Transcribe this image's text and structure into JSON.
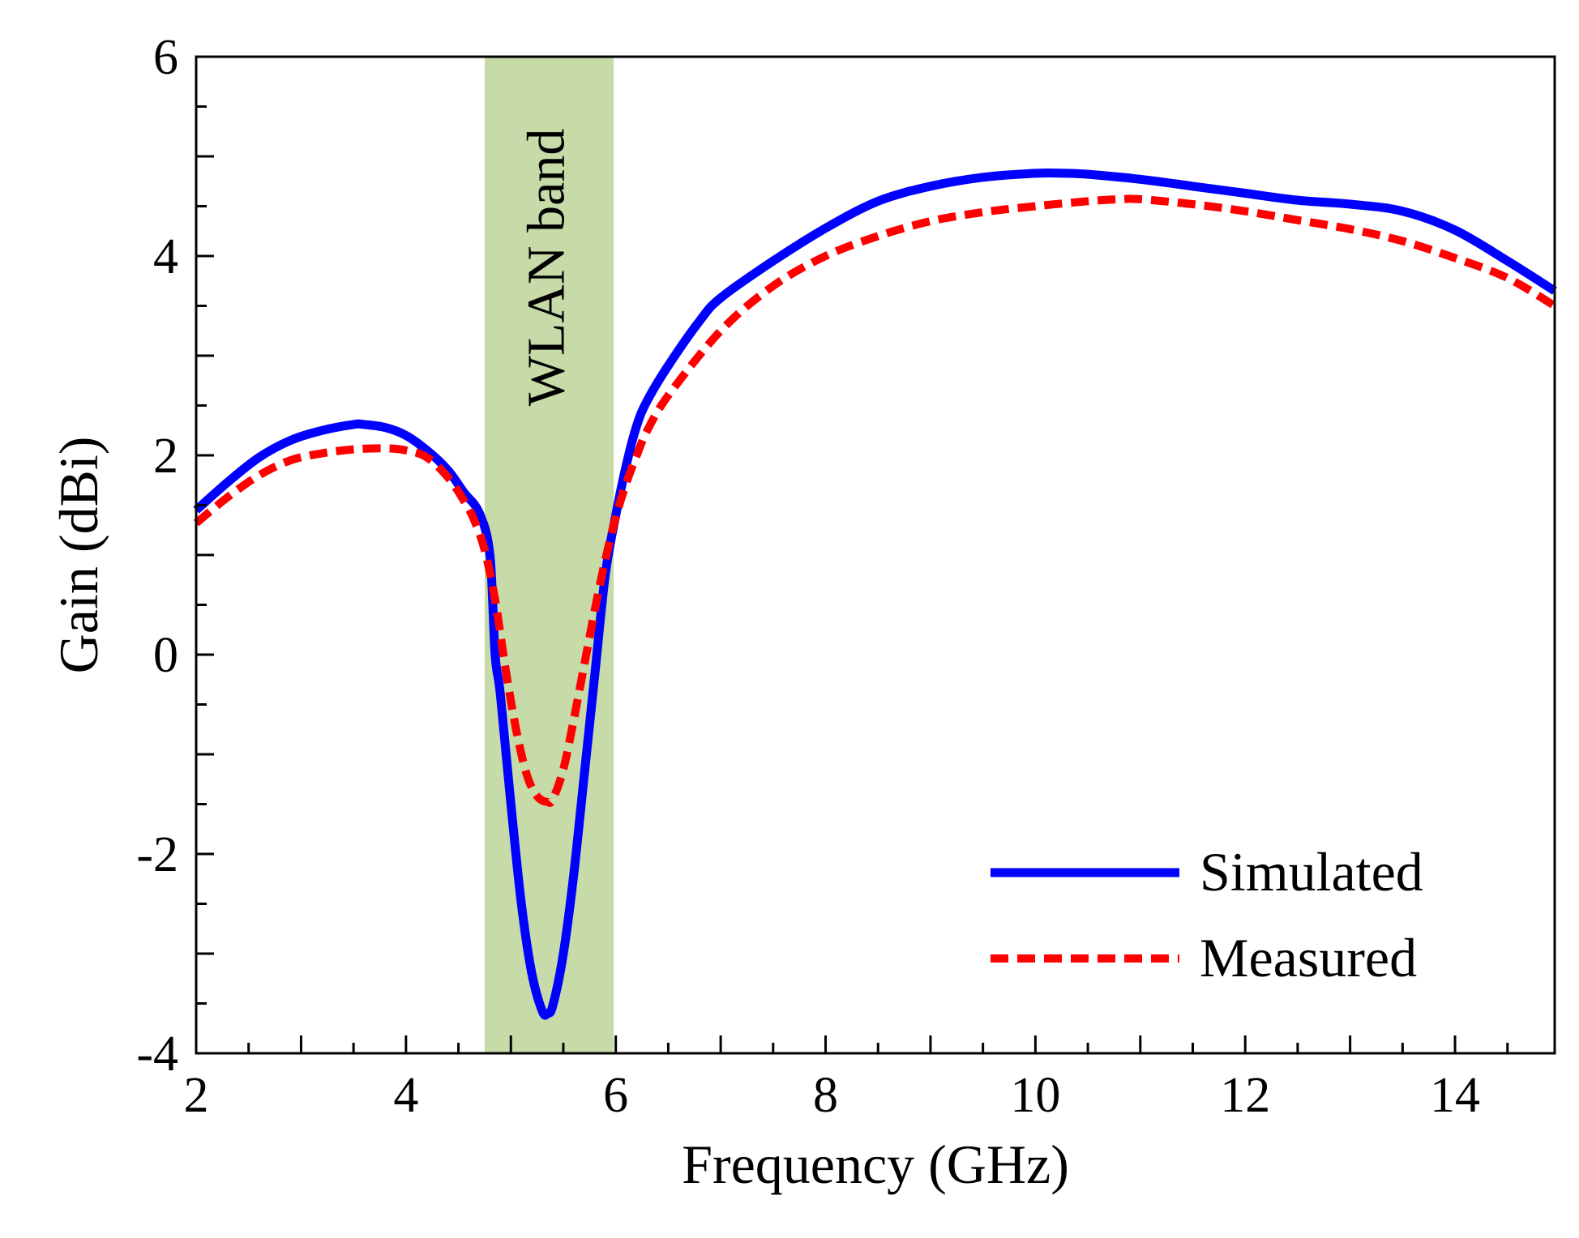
{
  "chart_data": {
    "type": "line",
    "xlabel": "Frequency (GHz)",
    "ylabel": "Gain (dBi)",
    "xlim": [
      2,
      14.95
    ],
    "ylim": [
      -4,
      6
    ],
    "xticks": [
      2,
      4,
      6,
      8,
      10,
      12,
      14
    ],
    "yticks": [
      -4,
      -2,
      0,
      2,
      4,
      6
    ],
    "grid": false,
    "legend_position": "bottom-right",
    "band": {
      "label": "WLAN band",
      "x_start": 4.75,
      "x_end": 5.98,
      "color": "#c6dba8"
    },
    "series": [
      {
        "name": "Simulated",
        "color": "#0000ff",
        "style": "solid",
        "x": [
          2.0,
          2.3,
          2.6,
          2.9,
          3.2,
          3.5,
          3.6,
          3.8,
          4.0,
          4.2,
          4.4,
          4.55,
          4.7,
          4.8,
          4.85,
          4.9,
          5.0,
          5.1,
          5.2,
          5.3,
          5.35,
          5.4,
          5.5,
          5.6,
          5.7,
          5.8,
          5.9,
          6.0,
          6.1,
          6.2,
          6.3,
          6.5,
          6.8,
          7.0,
          7.5,
          8.0,
          8.5,
          9.0,
          9.5,
          10.0,
          10.3,
          10.5,
          11.0,
          11.5,
          12.0,
          12.5,
          13.0,
          13.5,
          14.0,
          14.5,
          14.95
        ],
        "y": [
          1.45,
          1.73,
          1.98,
          2.15,
          2.25,
          2.31,
          2.31,
          2.28,
          2.2,
          2.05,
          1.85,
          1.63,
          1.42,
          1.0,
          0.0,
          -0.4,
          -1.5,
          -2.5,
          -3.2,
          -3.58,
          -3.6,
          -3.52,
          -3.0,
          -2.2,
          -1.2,
          -0.2,
          0.8,
          1.4,
          1.9,
          2.3,
          2.55,
          2.9,
          3.35,
          3.58,
          3.95,
          4.28,
          4.55,
          4.7,
          4.79,
          4.83,
          4.83,
          4.82,
          4.77,
          4.7,
          4.63,
          4.56,
          4.52,
          4.45,
          4.26,
          3.95,
          3.65
        ]
      },
      {
        "name": "Measured",
        "color": "#ff0000",
        "style": "dashed",
        "x": [
          2.0,
          2.3,
          2.6,
          2.9,
          3.2,
          3.5,
          3.8,
          4.0,
          4.2,
          4.4,
          4.55,
          4.65,
          4.75,
          4.85,
          4.95,
          5.05,
          5.15,
          5.25,
          5.35,
          5.4,
          5.5,
          5.6,
          5.7,
          5.8,
          5.9,
          6.0,
          6.1,
          6.2,
          6.3,
          6.5,
          7.0,
          7.5,
          8.0,
          8.5,
          9.0,
          9.5,
          10.0,
          10.5,
          10.8,
          11.0,
          11.5,
          12.0,
          12.5,
          13.0,
          13.5,
          14.0,
          14.5,
          14.95
        ],
        "y": [
          1.32,
          1.58,
          1.8,
          1.95,
          2.02,
          2.06,
          2.07,
          2.05,
          1.98,
          1.78,
          1.55,
          1.35,
          1.05,
          0.55,
          -0.15,
          -0.75,
          -1.2,
          -1.42,
          -1.48,
          -1.45,
          -1.15,
          -0.65,
          -0.1,
          0.45,
          0.95,
          1.38,
          1.72,
          2.0,
          2.25,
          2.6,
          3.25,
          3.7,
          4.0,
          4.2,
          4.35,
          4.44,
          4.5,
          4.55,
          4.57,
          4.57,
          4.52,
          4.45,
          4.36,
          4.27,
          4.15,
          3.98,
          3.78,
          3.5
        ]
      }
    ]
  }
}
